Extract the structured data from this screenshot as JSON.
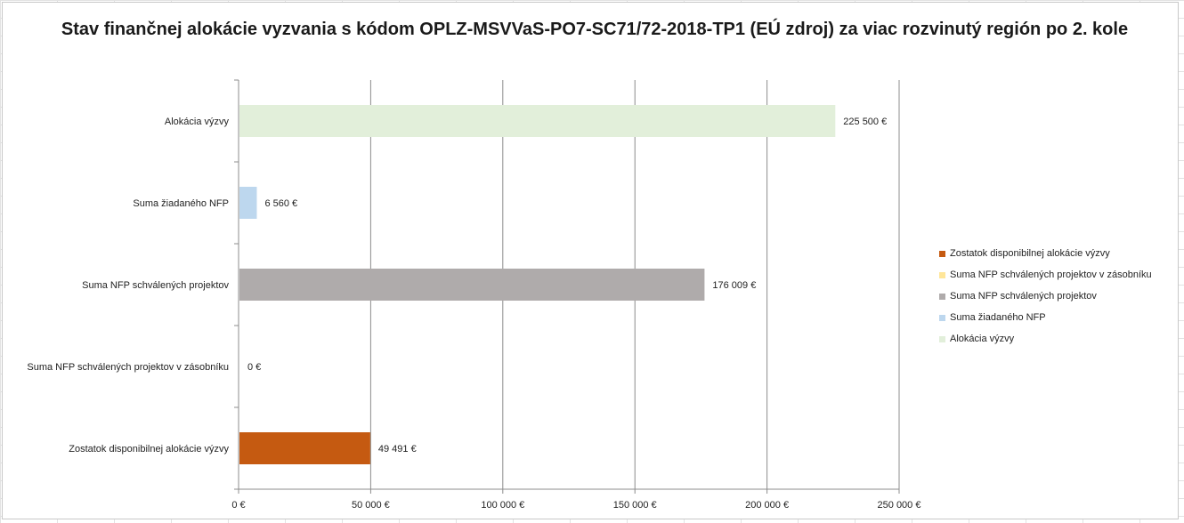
{
  "chart_data": {
    "type": "bar",
    "orientation": "horizontal",
    "title": "Stav finančnej alokácie vyzvania s kódom OPLZ-MSVVaS-PO7-SC71/72-2018-TP1 (EÚ zdroj) za viac rozvinutý región po 2. kole",
    "categories": [
      "Alokácia výzvy",
      "Suma žiadaného NFP",
      "Suma NFP schválených projektov",
      "Suma NFP schválených projektov v zásobníku",
      "Zostatok disponibilnej alokácie výzvy"
    ],
    "values": [
      225500,
      6560,
      176009,
      0,
      49491
    ],
    "data_labels": [
      "225 500 €",
      "6 560 €",
      "176 009 €",
      "0 €",
      "49 491 €"
    ],
    "colors": [
      "#e2efda",
      "#bdd7ee",
      "#afabab",
      "#ffe699",
      "#c55a11"
    ],
    "xlim": [
      0,
      250000
    ],
    "xticks": [
      0,
      50000,
      100000,
      150000,
      200000,
      250000
    ],
    "xtick_labels": [
      "0 €",
      "50 000 €",
      "100 000 €",
      "150 000 €",
      "200 000 €",
      "250 000 €"
    ],
    "xlabel": "",
    "ylabel": "",
    "grid": true,
    "legend_position": "right",
    "legend": [
      {
        "label": "Zostatok disponibilnej alokácie výzvy",
        "color": "#c55a11"
      },
      {
        "label": "Suma NFP schválených projektov v zásobníku",
        "color": "#ffe699"
      },
      {
        "label": "Suma NFP schválených projektov",
        "color": "#afabab"
      },
      {
        "label": "Suma žiadaného NFP",
        "color": "#bdd7ee"
      },
      {
        "label": "Alokácia výzvy",
        "color": "#e2efda"
      }
    ]
  }
}
